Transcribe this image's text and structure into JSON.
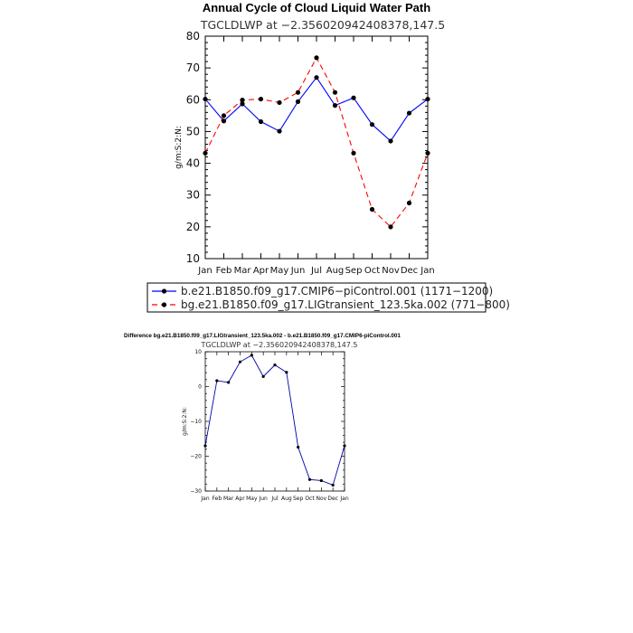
{
  "chart_data": [
    {
      "type": "line",
      "title": "Annual Cycle of Cloud Liquid Water Path",
      "subtitle": "TGCLDLWP at −2.356020942408378,147.5",
      "ylabel": "g/m:S:2:N:",
      "xlabel": "",
      "ylim": [
        10,
        80
      ],
      "yticks": [
        10,
        20,
        30,
        40,
        50,
        60,
        70,
        80
      ],
      "categories": [
        "Jan",
        "Feb",
        "Mar",
        "Apr",
        "May",
        "Jun",
        "Jul",
        "Aug",
        "Sep",
        "Oct",
        "Nov",
        "Dec",
        "Jan"
      ],
      "series": [
        {
          "name": "b.e21.B1850.f09_g17.CMIP6−piControl.001 (1171−1200)",
          "color": "#0000ff",
          "style": "solid",
          "values": [
            60.2,
            53.3,
            58.7,
            53.1,
            50.1,
            59.4,
            67.0,
            58.2,
            60.6,
            52.2,
            47.0,
            55.8,
            60.2
          ]
        },
        {
          "name": "bg.e21.B1850.f09_g17.LIGtransient_123.5ka.002 (771−800)",
          "color": "#ff0000",
          "style": "dashed",
          "values": [
            43.2,
            55.0,
            59.9,
            60.2,
            59.1,
            62.3,
            73.2,
            62.3,
            43.2,
            25.5,
            20.0,
            27.5,
            43.2
          ]
        }
      ],
      "legend_position": "bottom"
    },
    {
      "type": "line",
      "title": "Difference bg.e21.B1850.f09_g17.LIGtransient_123.5ka.002 - b.e21.B1850.f09_g17.CMIP6-piControl.001",
      "subtitle": "TGCLDLWP at −2.356020942408378,147.5",
      "ylabel": "g/m:S:2:N:",
      "xlabel": "",
      "ylim": [
        -30,
        10
      ],
      "yticks": [
        -30,
        -20,
        -10,
        0,
        10
      ],
      "ytick_labels": [
        "−30",
        "−20",
        "−10",
        "0",
        "10"
      ],
      "categories": [
        "Jan",
        "Feb",
        "Mar",
        "Apr",
        "May",
        "Jun",
        "Jul",
        "Aug",
        "Sep",
        "Oct",
        "Nov",
        "Dec",
        "Jan"
      ],
      "series": [
        {
          "name": "difference",
          "color": "#0000aa",
          "style": "solid",
          "values": [
            -17.0,
            1.7,
            1.2,
            7.1,
            9.0,
            2.9,
            6.2,
            4.1,
            -17.4,
            -26.7,
            -27.0,
            -28.3,
            -17.0
          ]
        }
      ]
    }
  ]
}
